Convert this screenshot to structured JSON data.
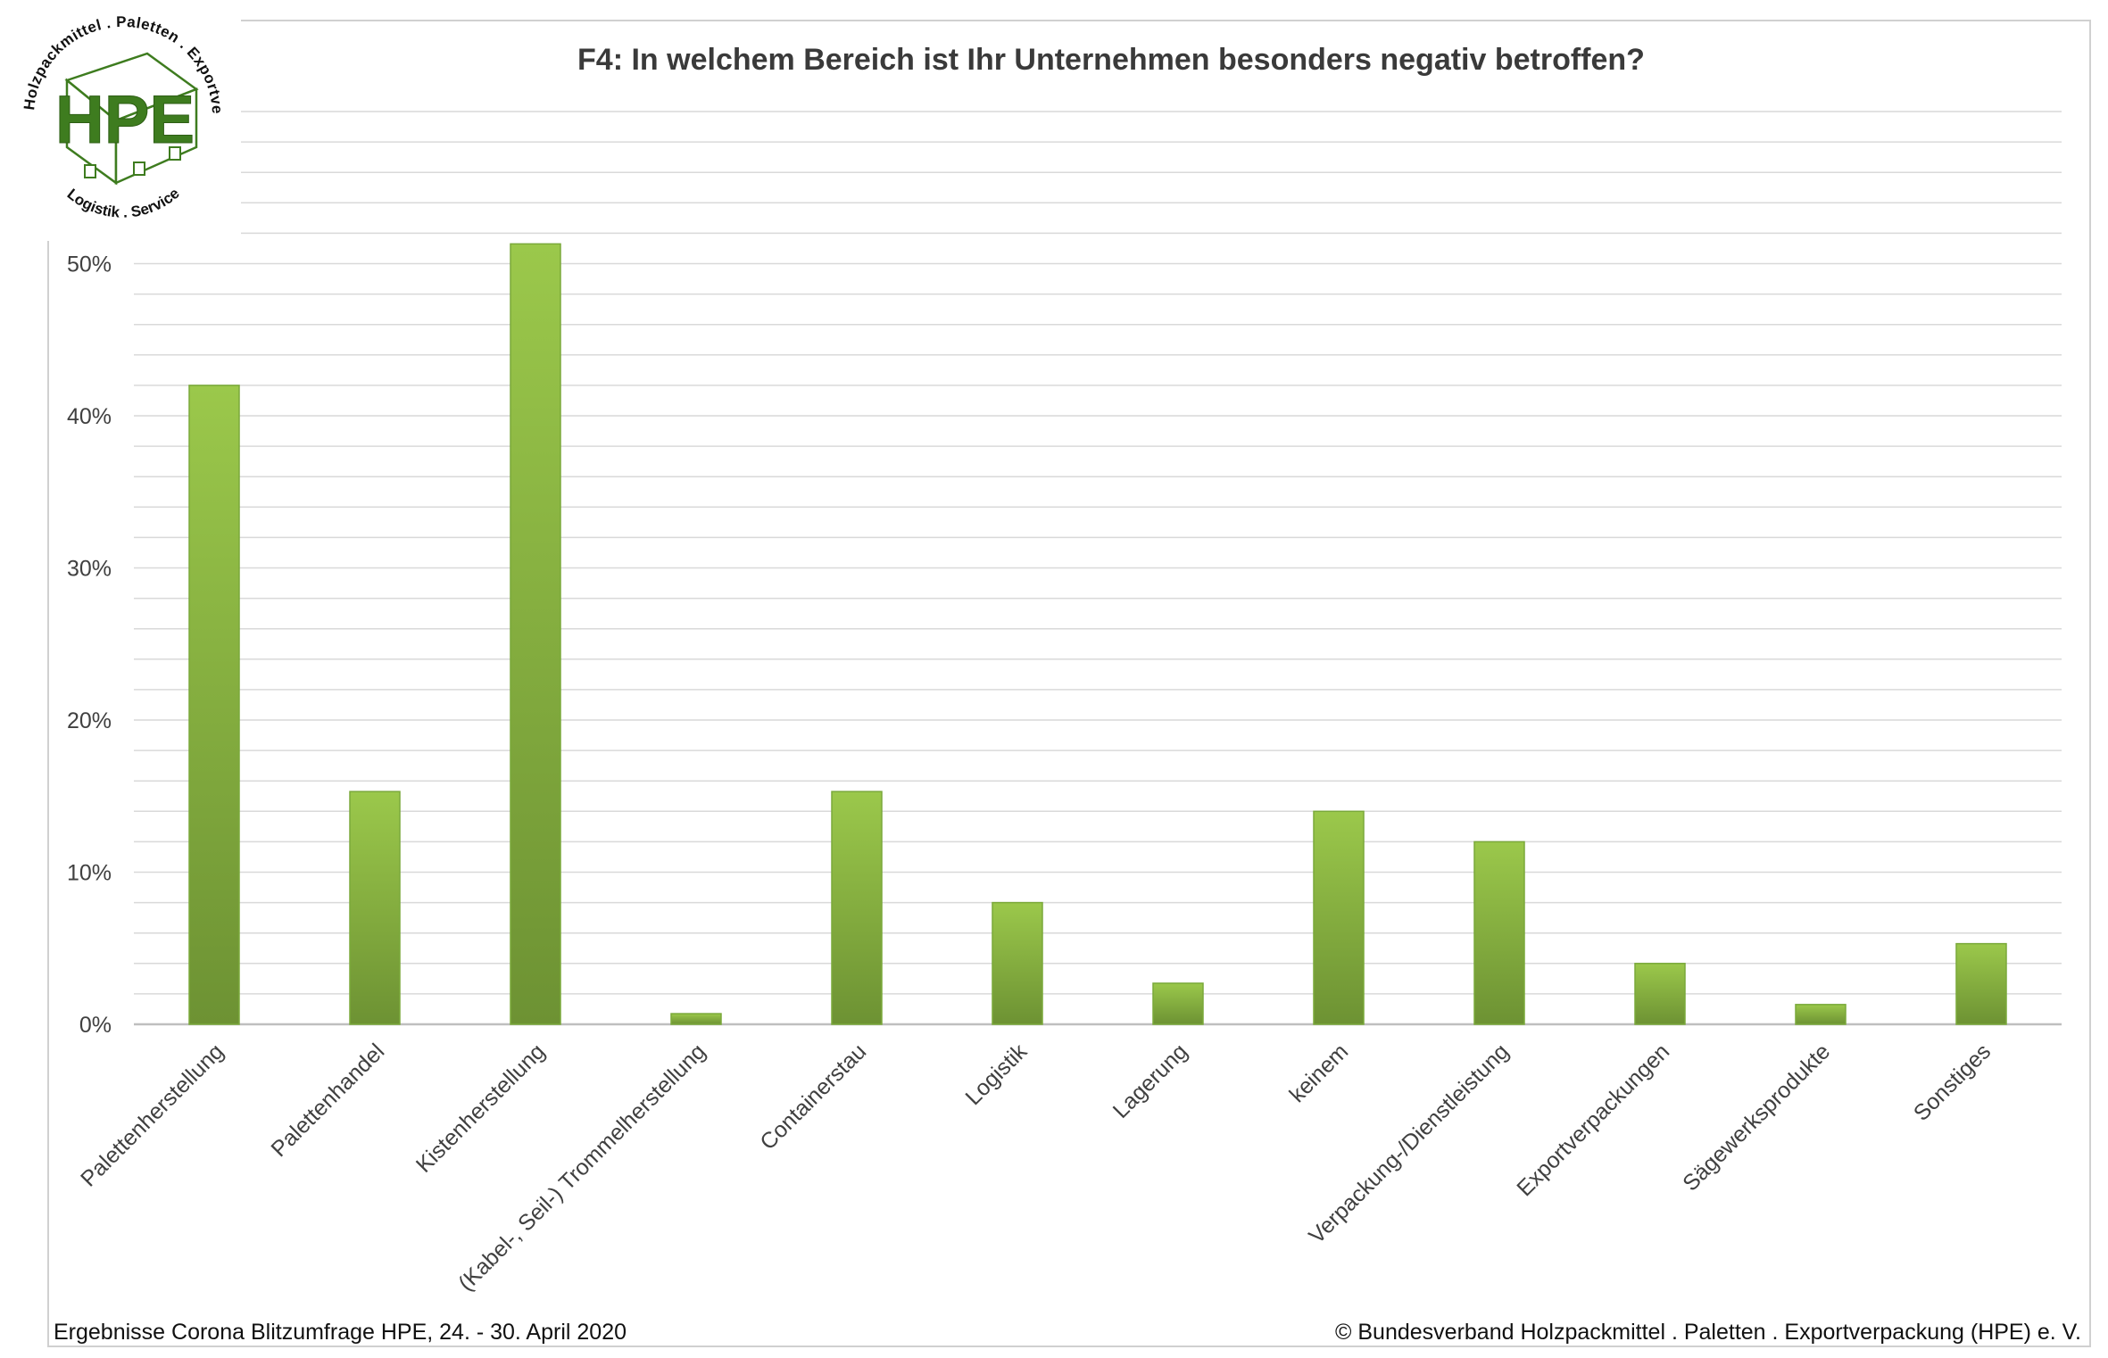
{
  "logo": {
    "text": "HPE",
    "ring_text_top": "Holzpackmittel . Paletten . Exportverpackung",
    "ring_text_bottom": "Logistik . Service",
    "color": "#3e7c1f"
  },
  "footer": {
    "left": "Ergebnisse Corona Blitzumfrage HPE, 24. - 30. April 2020",
    "right": "© Bundesverband Holzpackmittel . Paletten . Exportverpackung (HPE) e. V."
  },
  "colors": {
    "bar_top": "#9bc84b",
    "bar_bottom": "#6d9233",
    "bar_border": "#7aa93a",
    "grid": "#d9d9d9",
    "axis": "#bfbfbf"
  },
  "chart_data": {
    "type": "bar",
    "title": "F4: In welchem Bereich ist Ihr Unternehmen besonders negativ betroffen?",
    "categories": [
      "Palettenherstellung",
      "Palettenhandel",
      "Kistenherstellung",
      "(Kabel-, Seil-) Trommelherstellung",
      "Containerstau",
      "Logistik",
      "Lagerung",
      "keinem",
      "Verpackung-/Dienstleistung",
      "Exportverpackungen",
      "Sägewerksprodukte",
      "Sonstiges"
    ],
    "values": [
      42.0,
      15.3,
      51.3,
      0.7,
      15.3,
      8.0,
      2.7,
      14.0,
      12.0,
      4.0,
      1.3,
      5.3
    ],
    "y_ticks": [
      "0%",
      "10%",
      "20%",
      "30%",
      "40%",
      "50%"
    ],
    "ylim": [
      0,
      60
    ],
    "y_tick_step": 10,
    "minor_grid_step": 2,
    "grid": true,
    "xlabel": "",
    "ylabel": ""
  }
}
